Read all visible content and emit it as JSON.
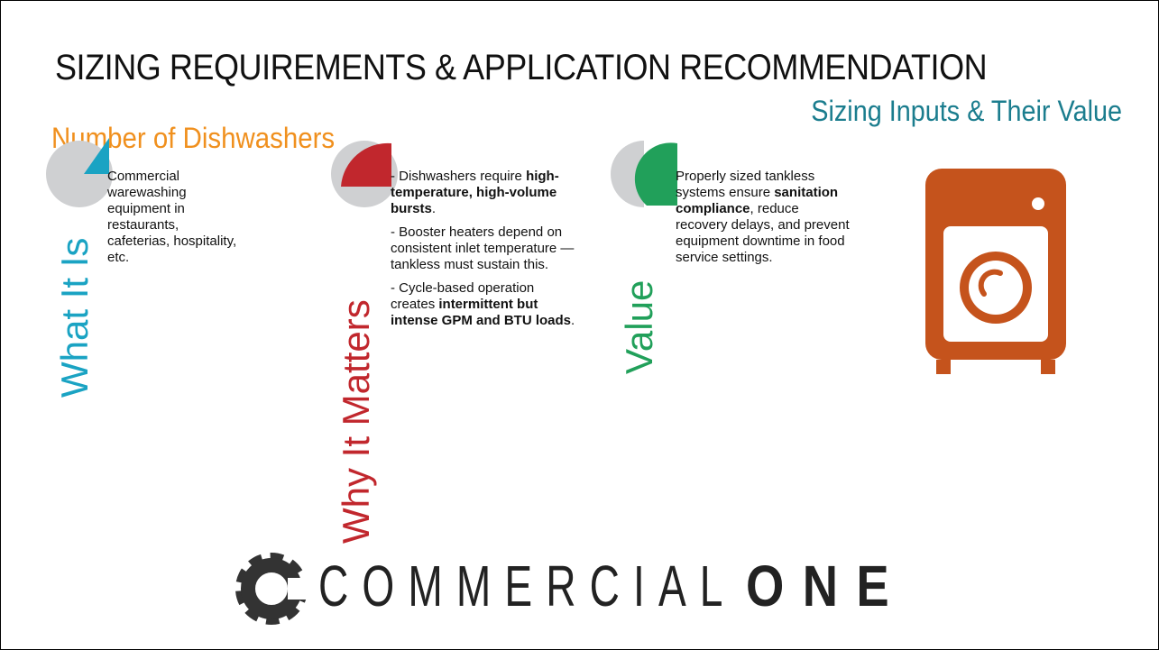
{
  "header": {
    "title": "SIZING REQUIREMENTS & APPLICATION RECOMMENDATION",
    "subtitle": "Sizing Inputs & Their Value",
    "heading": "Number of Dishwashers"
  },
  "columns": [
    {
      "label": "What It Is",
      "paragraphs": [
        [
          {
            "text": "Commercial warewashing equipment in restaurants, cafeterias, hospitality, etc.",
            "bold": false
          }
        ]
      ]
    },
    {
      "label": "Why It Matters",
      "paragraphs": [
        [
          {
            "text": "- Dishwashers require ",
            "bold": false
          },
          {
            "text": "high-temperature, high-volume bursts",
            "bold": true
          },
          {
            "text": ".",
            "bold": false
          }
        ],
        [
          {
            "text": "- Booster heaters depend on consistent inlet temperature — tankless must sustain this.",
            "bold": false
          }
        ],
        [
          {
            "text": "- Cycle-based operation creates ",
            "bold": false
          },
          {
            "text": "intermittent but intense GPM and BTU loads",
            "bold": true
          },
          {
            "text": ".",
            "bold": false
          }
        ]
      ]
    },
    {
      "label": "Value",
      "paragraphs": [
        [
          {
            "text": "Properly sized tankless systems ensure ",
            "bold": false
          },
          {
            "text": "sanitation compliance",
            "bold": true
          },
          {
            "text": ", reduce recovery delays, and prevent equipment downtime in food service settings.",
            "bold": false
          }
        ]
      ]
    }
  ],
  "logo": {
    "light": "COMMERCIAL",
    "bold": "ONE"
  }
}
